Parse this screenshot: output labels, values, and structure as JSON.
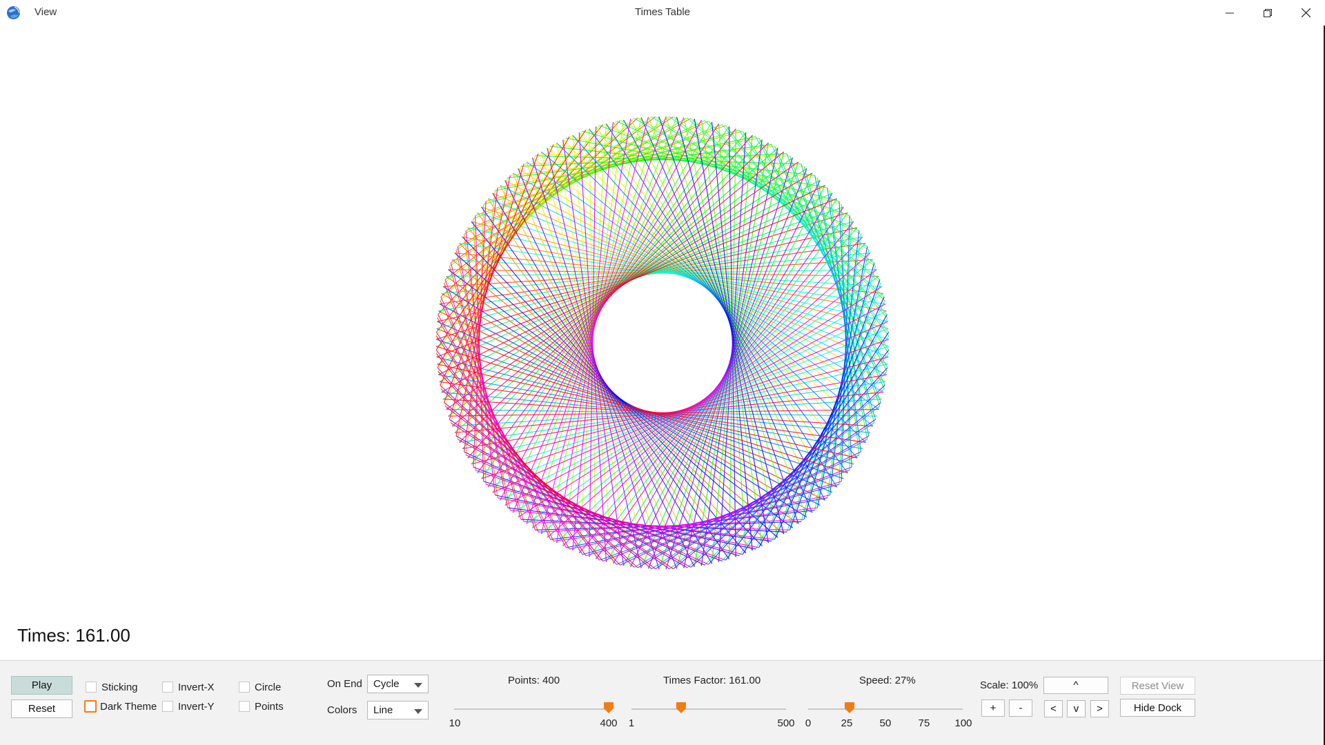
{
  "titlebar": {
    "menu_view": "View",
    "title": "Times Table",
    "minimize_icon": "minimize-icon",
    "maximize_icon": "restore-icon",
    "close_icon": "close-icon"
  },
  "canvas": {
    "times_label": "Times: 161.00",
    "points": 400,
    "times_factor": 161.0,
    "color_mode": "Line"
  },
  "dock": {
    "play_label": "Play",
    "reset_label": "Reset",
    "checkboxes": {
      "sticking": "Sticking",
      "dark_theme": "Dark Theme",
      "invert_x": "Invert-X",
      "invert_y": "Invert-Y",
      "circle": "Circle",
      "points": "Points"
    },
    "on_end_label": "On End",
    "on_end_value": "Cycle",
    "colors_label": "Colors",
    "colors_value": "Line",
    "points_slider": {
      "label": "Points: 400",
      "min_label": "10",
      "max_label": "400",
      "value_fraction": 1.0
    },
    "times_slider": {
      "label": "Times Factor: 161.00",
      "min_label": "1",
      "max_label": "500",
      "value_fraction": 0.32
    },
    "speed_slider": {
      "label": "Speed: 27%",
      "ticks": [
        "0",
        "25",
        "50",
        "75",
        "100"
      ],
      "value_fraction": 0.27
    },
    "scale_label": "Scale: 100%",
    "up_label": "^",
    "plus_label": "+",
    "minus_label": "-",
    "left_label": "<",
    "down_label": "v",
    "right_label": ">",
    "reset_view_label": "Reset View",
    "hide_dock_label": "Hide Dock"
  },
  "colors": {
    "accent": "#ee7d16",
    "play_bg": "#c8dcd9",
    "dock_bg": "#f2f2f2"
  }
}
